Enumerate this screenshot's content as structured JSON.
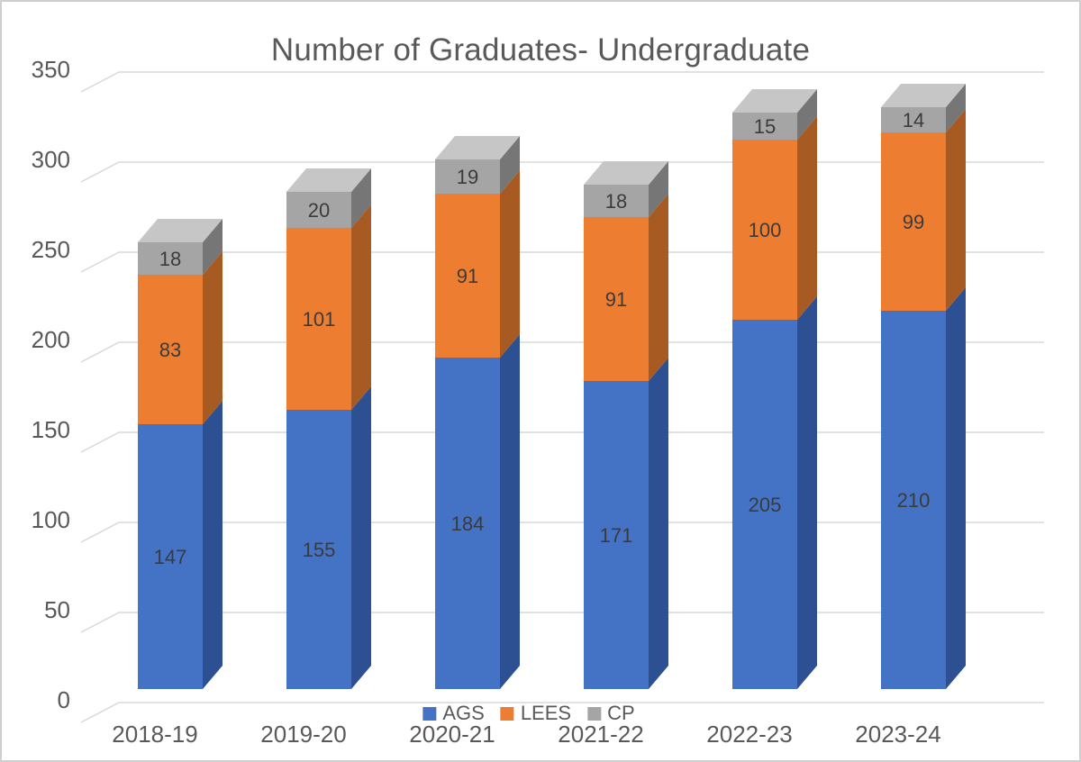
{
  "chart_data": {
    "type": "bar",
    "subtype": "stacked-3d",
    "title": "Number of Graduates- Undergraduate",
    "categories": [
      "2018-19",
      "2019-20",
      "2020-21",
      "2021-22",
      "2022-23",
      "2023-24"
    ],
    "series": [
      {
        "name": "AGS",
        "color": "#4472C4",
        "side_color": "#2d5092",
        "top_color": "#6a8fd4",
        "values": [
          147,
          155,
          184,
          171,
          205,
          210
        ]
      },
      {
        "name": "LEES",
        "color": "#ED7D31",
        "side_color": "#a85a23",
        "top_color": "#f29b61",
        "values": [
          83,
          101,
          91,
          91,
          100,
          99
        ]
      },
      {
        "name": "CP",
        "color": "#A5A5A5",
        "side_color": "#767676",
        "top_color": "#c6c6c6",
        "values": [
          18,
          20,
          19,
          18,
          15,
          14
        ]
      }
    ],
    "totals": [
      248,
      276,
      294,
      280,
      320,
      323
    ],
    "ylim": [
      0,
      350
    ],
    "ytick_interval": 50,
    "yticks": [
      0,
      50,
      100,
      150,
      200,
      250,
      300,
      350
    ],
    "grid": true,
    "legend_position": "bottom-center",
    "colors": {
      "gridline": "#D9D9D9",
      "axis_text": "#595959",
      "value_label_text": "#3b3b3b",
      "background": "#ffffff"
    }
  }
}
